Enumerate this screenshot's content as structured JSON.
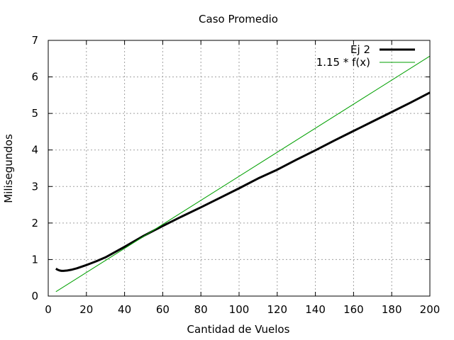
{
  "chart_data": {
    "type": "line",
    "title": "Caso Promedio",
    "xlabel": "Cantidad de Vuelos",
    "ylabel": "Milisegundos",
    "xlim": [
      0,
      200
    ],
    "ylim": [
      0,
      7
    ],
    "xticks": [
      0,
      20,
      40,
      60,
      80,
      100,
      120,
      140,
      160,
      180,
      200
    ],
    "yticks": [
      0,
      1,
      2,
      3,
      4,
      5,
      6,
      7
    ],
    "grid": true,
    "legend_position": "top-right",
    "series": [
      {
        "name": "Ej 2",
        "color": "#000000",
        "style": "thick",
        "x": [
          4,
          5,
          6,
          7,
          8,
          10,
          12,
          15,
          20,
          25,
          30,
          40,
          50,
          60,
          70,
          80,
          90,
          100,
          110,
          120,
          130,
          140,
          150,
          160,
          170,
          180,
          190,
          200
        ],
        "y": [
          0.75,
          0.72,
          0.7,
          0.69,
          0.69,
          0.7,
          0.72,
          0.76,
          0.85,
          0.95,
          1.06,
          1.35,
          1.65,
          1.92,
          2.18,
          2.43,
          2.69,
          2.95,
          3.22,
          3.46,
          3.73,
          3.99,
          4.26,
          4.52,
          4.78,
          5.04,
          5.3,
          5.57
        ]
      },
      {
        "name": "1.15 * f(x)",
        "color": "#00a000",
        "style": "thin",
        "x": [
          4,
          200
        ],
        "y": [
          0.12,
          6.57
        ]
      }
    ]
  }
}
